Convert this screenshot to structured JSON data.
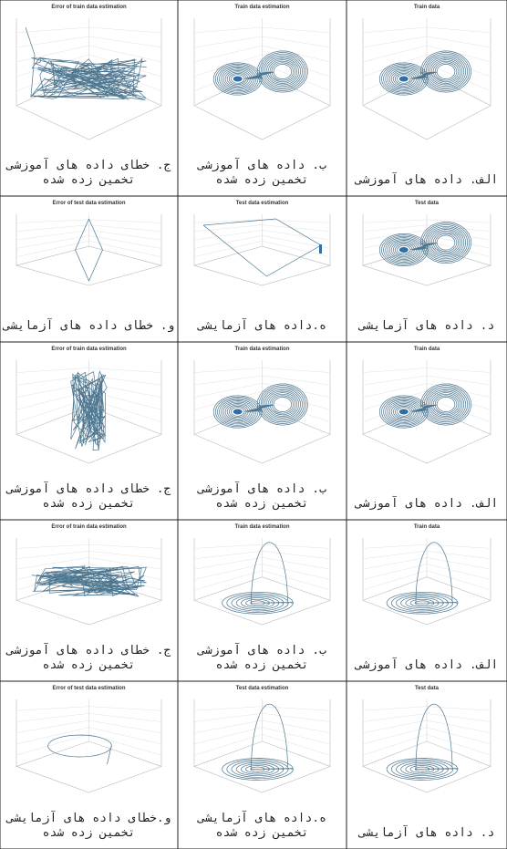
{
  "rows": [
    {
      "panels": [
        {
          "title": "Error of train data estimation",
          "caption": [
            "ج. خطای داده های آموزشی",
            "تخمین زده شده"
          ]
        },
        {
          "title": "Train data estimation",
          "caption": [
            "ب. داده های آموزشی",
            "تخمین زده شده"
          ]
        },
        {
          "title": "Train data",
          "caption": [
            "الف. داده های آموزشی"
          ]
        }
      ]
    },
    {
      "panels": [
        {
          "title": "Error of test data estimation",
          "caption": [
            "و. خطای داده های آزمایشی"
          ]
        },
        {
          "title": "Test data estimation",
          "caption": [
            "ه.داده های آزمایشی"
          ]
        },
        {
          "title": "Test data",
          "caption": [
            "د. داده های آزمایشی"
          ]
        }
      ]
    },
    {
      "panels": [
        {
          "title": "Error of train data estimation",
          "caption": [
            "ج. خطای داده های آموزشی",
            "تخمین زده شده"
          ]
        },
        {
          "title": "Train data estimation",
          "caption": [
            "ب. داده های آموزشی",
            "تخمین زده شده"
          ]
        },
        {
          "title": "Train data",
          "caption": [
            "الف. داده های آموزشی"
          ]
        }
      ]
    },
    {
      "panels": [
        {
          "title": "Error of train data estimation",
          "caption": [
            "ج. خطای داده های آموزشی",
            "تخمین زده شده"
          ]
        },
        {
          "title": "Train data estimation",
          "caption": [
            "ب. داده های آموزشی",
            "تخمین زده شده"
          ]
        },
        {
          "title": "Train data",
          "caption": [
            "الف. داده های آموزشی"
          ]
        }
      ]
    },
    {
      "panels": [
        {
          "title": "Error of test data estimation",
          "caption": [
            "و.خطای داده های آزمایشی",
            "تخمین زده شده"
          ]
        },
        {
          "title": "Test data estimation",
          "caption": [
            "ه.داده های آزمایشی",
            "تخمین زده شده"
          ]
        },
        {
          "title": "Test data",
          "caption": [
            "د. داده های آزمایشی"
          ]
        }
      ]
    }
  ]
}
